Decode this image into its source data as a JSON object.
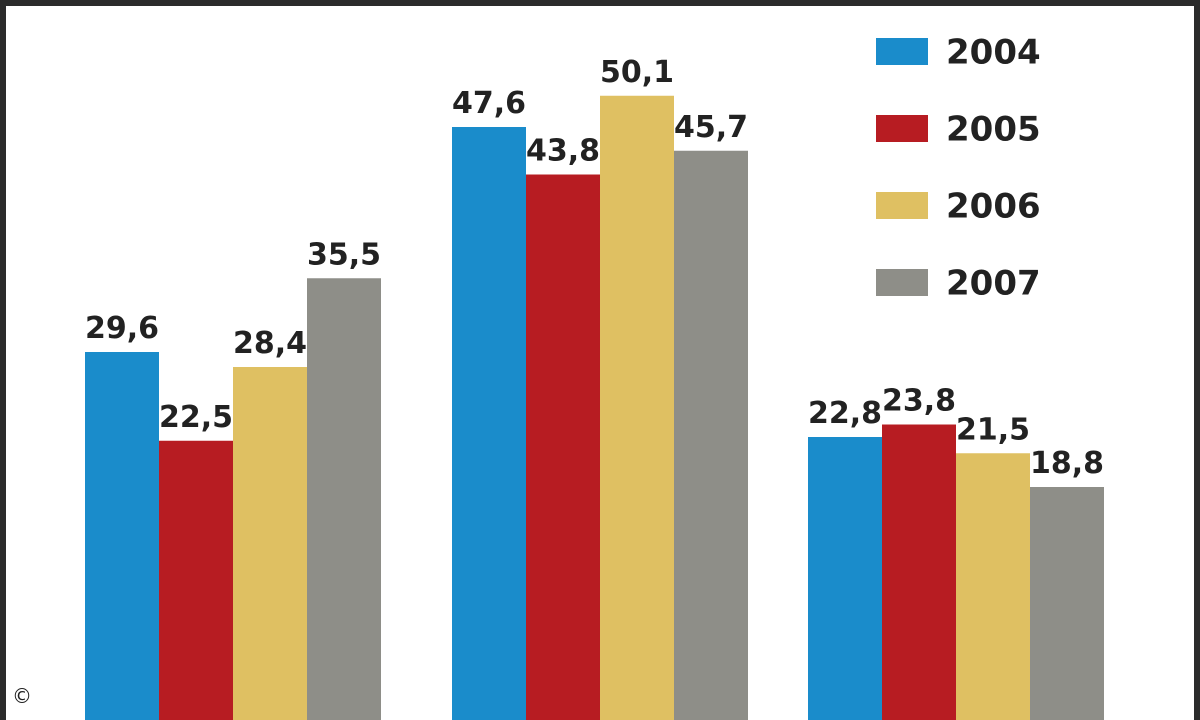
{
  "chart_data": {
    "type": "bar",
    "categories": [
      "",
      "",
      ""
    ],
    "series": [
      {
        "name": "2004",
        "color": "#1a8ccb",
        "values": [
          29.6,
          47.6,
          22.8
        ]
      },
      {
        "name": "2005",
        "color": "#b71c22",
        "values": [
          22.5,
          43.8,
          23.8
        ]
      },
      {
        "name": "2006",
        "color": "#dfc062",
        "values": [
          28.4,
          50.1,
          21.5
        ]
      },
      {
        "name": "2007",
        "color": "#8e8e88",
        "values": [
          35.5,
          45.7,
          18.8
        ]
      }
    ],
    "data_labels": [
      [
        "29,6",
        "47,6",
        "22,8"
      ],
      [
        "22,5",
        "43,8",
        "23,8"
      ],
      [
        "28,4",
        "50,1",
        "21,5"
      ],
      [
        "35,5",
        "45,7",
        "18,8"
      ]
    ],
    "legend_position": "top-right",
    "grid": false,
    "axes_visible": false
  },
  "footer": {
    "copyright": "©"
  }
}
